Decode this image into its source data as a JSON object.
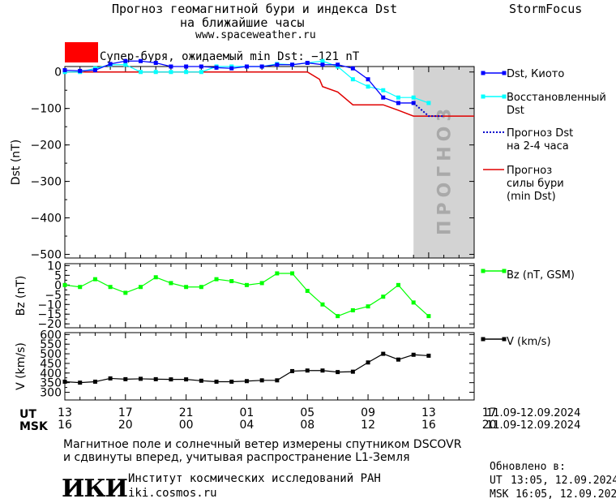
{
  "header": {
    "title_line1": "Прогноз геомагнитной бури и индекса Dst",
    "title_line2": "на ближайшие часы",
    "website": "www.spaceweather.ru",
    "brand": "StormFocus"
  },
  "storm_banner": {
    "text": "Супер-буря, ожидаемый min Dst: −121 nT",
    "color": "#ff0000"
  },
  "colors": {
    "dst_kyoto": "#0000ff",
    "dst_restored": "#00ffff",
    "dst_forecast": "#0000cc",
    "storm_forecast": "#e00000",
    "bz": "#00ff00",
    "v": "#000000",
    "forecast_zone": "#d3d3d3"
  },
  "forecast_zone_label": "ПРОГНОЗ",
  "legend": {
    "dst_kyoto": "Dst, Киото",
    "restored_1": "Восстановленный",
    "restored_2": "Dst",
    "forecast_1": "Прогноз Dst",
    "forecast_2": "на 2-4 часа",
    "storm_1": "Прогноз",
    "storm_2": "силы бури",
    "storm_3": "(min Dst)",
    "bz": "Bz (nT, GSM)",
    "v": "V (km/s)"
  },
  "time_axis": {
    "ut_label": "UT",
    "msk_label": "MSK",
    "ut_ticks": [
      "13",
      "17",
      "21",
      "01",
      "05",
      "09",
      "13",
      "17"
    ],
    "msk_ticks": [
      "16",
      "20",
      "00",
      "04",
      "08",
      "12",
      "16",
      "20"
    ],
    "ut_range": "11.09-12.09.2024",
    "msk_range": "11.09-12.09.2024"
  },
  "chart_data": [
    {
      "type": "line",
      "panel": "dst",
      "ylabel": "Dst (nT)",
      "x_hours": [
        0,
        1,
        2,
        3,
        4,
        5,
        6,
        7,
        8,
        9,
        10,
        11,
        12,
        13,
        14,
        15,
        16,
        17,
        18,
        19,
        20,
        21,
        22,
        23,
        24
      ],
      "ylim": [
        -510,
        15
      ],
      "yticks": [
        0,
        -100,
        -200,
        -300,
        -400,
        -500
      ],
      "forecast_zone_x": [
        23,
        27
      ],
      "series": [
        {
          "name": "Dst, Киото",
          "x": [
            0,
            1,
            2,
            3,
            4,
            5,
            6,
            7,
            8,
            9,
            10,
            11,
            12,
            13,
            14,
            15,
            16,
            17,
            18,
            19,
            20,
            21,
            22,
            23
          ],
          "values": [
            5,
            3,
            5,
            22,
            30,
            30,
            25,
            15,
            15,
            15,
            12,
            10,
            15,
            15,
            20,
            20,
            25,
            20,
            20,
            10,
            -20,
            -70,
            -85,
            -85
          ]
        },
        {
          "name": "Восстановленный Dst",
          "x": [
            0,
            1,
            2,
            3,
            4,
            5,
            6,
            7,
            8,
            9,
            10,
            11,
            12,
            13,
            14,
            15,
            16,
            17,
            18,
            19,
            20,
            21,
            22,
            23,
            24
          ],
          "values": [
            0,
            0,
            10,
            20,
            20,
            0,
            0,
            0,
            0,
            0,
            15,
            15,
            15,
            15,
            22,
            20,
            25,
            30,
            15,
            -20,
            -40,
            -50,
            -70,
            -70,
            -85
          ]
        },
        {
          "name": "Прогноз Dst на 2-4 часа",
          "x": [
            23,
            24,
            25
          ],
          "values": [
            -85,
            -121,
            -121
          ]
        },
        {
          "name": "Прогноз силы бури (min Dst)",
          "x": [
            0,
            16,
            16.8,
            17,
            18,
            19,
            20,
            21,
            22,
            23,
            24,
            25,
            26,
            27
          ],
          "values": [
            0,
            0,
            -20,
            -40,
            -55,
            -90,
            -90,
            -90,
            -105,
            -121,
            -121,
            -121,
            -121,
            -121
          ]
        }
      ]
    },
    {
      "type": "line",
      "panel": "bz",
      "ylabel": "Bz (nT)",
      "ylim": [
        -22,
        11
      ],
      "yticks": [
        10,
        5,
        0,
        -5,
        -10,
        -15,
        -20
      ],
      "series": [
        {
          "name": "Bz (nT, GSM)",
          "x": [
            0,
            1,
            2,
            3,
            4,
            5,
            6,
            7,
            8,
            9,
            10,
            11,
            12,
            13,
            14,
            15,
            16,
            17,
            18,
            19,
            20,
            21,
            22,
            23,
            24
          ],
          "values": [
            0,
            -1,
            3,
            -1,
            -4,
            -1,
            4,
            1,
            -1,
            -1,
            3,
            2,
            0,
            1,
            6,
            6,
            -3,
            -10,
            -16,
            -13,
            -11,
            -6,
            0,
            -9,
            -16
          ]
        }
      ]
    },
    {
      "type": "line",
      "panel": "v",
      "ylabel": "V (km/s)",
      "ylim": [
        260,
        610
      ],
      "yticks": [
        600,
        550,
        500,
        450,
        400,
        350,
        300
      ],
      "series": [
        {
          "name": "V (km/s)",
          "x": [
            0,
            1,
            2,
            3,
            4,
            5,
            6,
            7,
            8,
            9,
            10,
            11,
            12,
            13,
            14,
            15,
            16,
            17,
            18,
            19,
            20,
            21,
            22,
            23,
            24
          ],
          "values": [
            355,
            350,
            355,
            372,
            368,
            370,
            368,
            367,
            367,
            360,
            355,
            355,
            358,
            362,
            362,
            410,
            413,
            413,
            405,
            407,
            455,
            500,
            470,
            495,
            490
          ]
        }
      ]
    }
  ],
  "footer": {
    "line1": "Магнитное поле и солнечный ветер измерены спутником DSCOVR",
    "line2": "и сдвинуты вперед, учитывая распространение L1-Земля",
    "logo": "ИКИ",
    "institute": "Институт космических исследований РАН",
    "institute_url": "iki.cosmos.ru",
    "updated_label": "Обновлено в:",
    "updated_ut_label": "UT",
    "updated_ut": "13:05, 12.09.2024",
    "updated_msk_label": "MSK",
    "updated_msk": "16:05, 12.09.2024"
  }
}
